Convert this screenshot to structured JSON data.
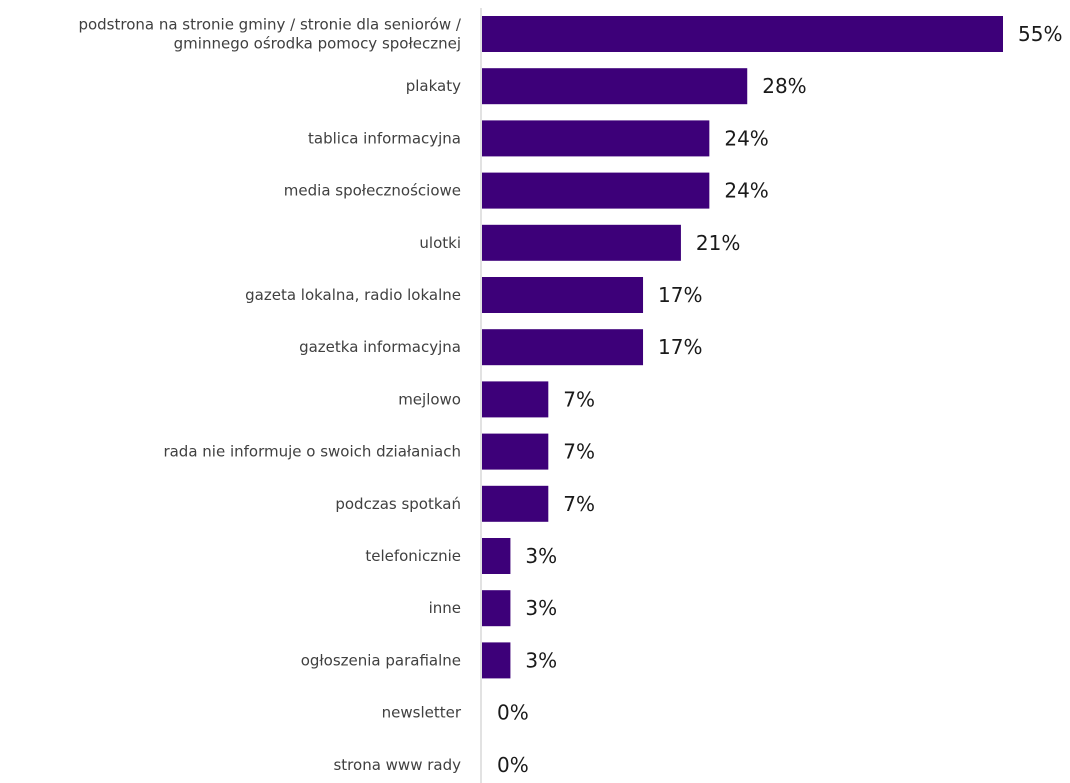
{
  "chart_data": {
    "type": "bar",
    "orientation": "horizontal",
    "categories": [
      [
        "podstrona na stronie gminy / stronie dla seniorów /",
        "gminnego ośrodka pomocy społecznej"
      ],
      [
        "plakaty"
      ],
      [
        "tablica informacyjna"
      ],
      [
        "media społecznościowe"
      ],
      [
        "ulotki"
      ],
      [
        "gazeta lokalna, radio lokalne"
      ],
      [
        "gazetka informacyjna"
      ],
      [
        "mejlowo"
      ],
      [
        "rada nie informuje o swoich działaniach"
      ],
      [
        "podczas spotkań"
      ],
      [
        "telefonicznie"
      ],
      [
        "inne"
      ],
      [
        "ogłoszenia parafialne"
      ],
      [
        "newsletter"
      ],
      [
        "strona www rady"
      ]
    ],
    "values": [
      55,
      28,
      24,
      24,
      21,
      17,
      17,
      7,
      7,
      7,
      3,
      3,
      3,
      0,
      0
    ],
    "value_labels": [
      "55%",
      "28%",
      "24%",
      "24%",
      "21%",
      "17%",
      "17%",
      "7%",
      "7%",
      "7%",
      "3%",
      "3%",
      "3%",
      "0%",
      "0%"
    ],
    "xlim": [
      0,
      55
    ],
    "bar_color": "#3d0079",
    "axis_color": "#d9d9d9",
    "grid": false,
    "legend": "none",
    "title": "",
    "xlabel": "",
    "ylabel": ""
  }
}
